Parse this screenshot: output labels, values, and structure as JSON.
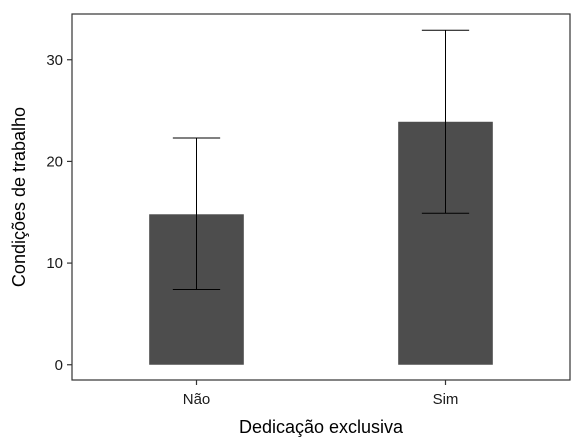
{
  "chart_data": {
    "type": "bar",
    "title": "",
    "xlabel": "Dedicação exclusiva",
    "ylabel": "Condições de trabalho",
    "categories": [
      "Não",
      "Sim"
    ],
    "values": [
      14.8,
      23.9
    ],
    "error_low": [
      7.4,
      14.9
    ],
    "error_high": [
      22.3,
      32.9
    ],
    "ylim": [
      -1.5,
      34.5
    ],
    "yticks": [
      0,
      10,
      20,
      30
    ],
    "grid": false,
    "bar_color": "#4d4d4d",
    "error_bar_color": "#000000"
  }
}
